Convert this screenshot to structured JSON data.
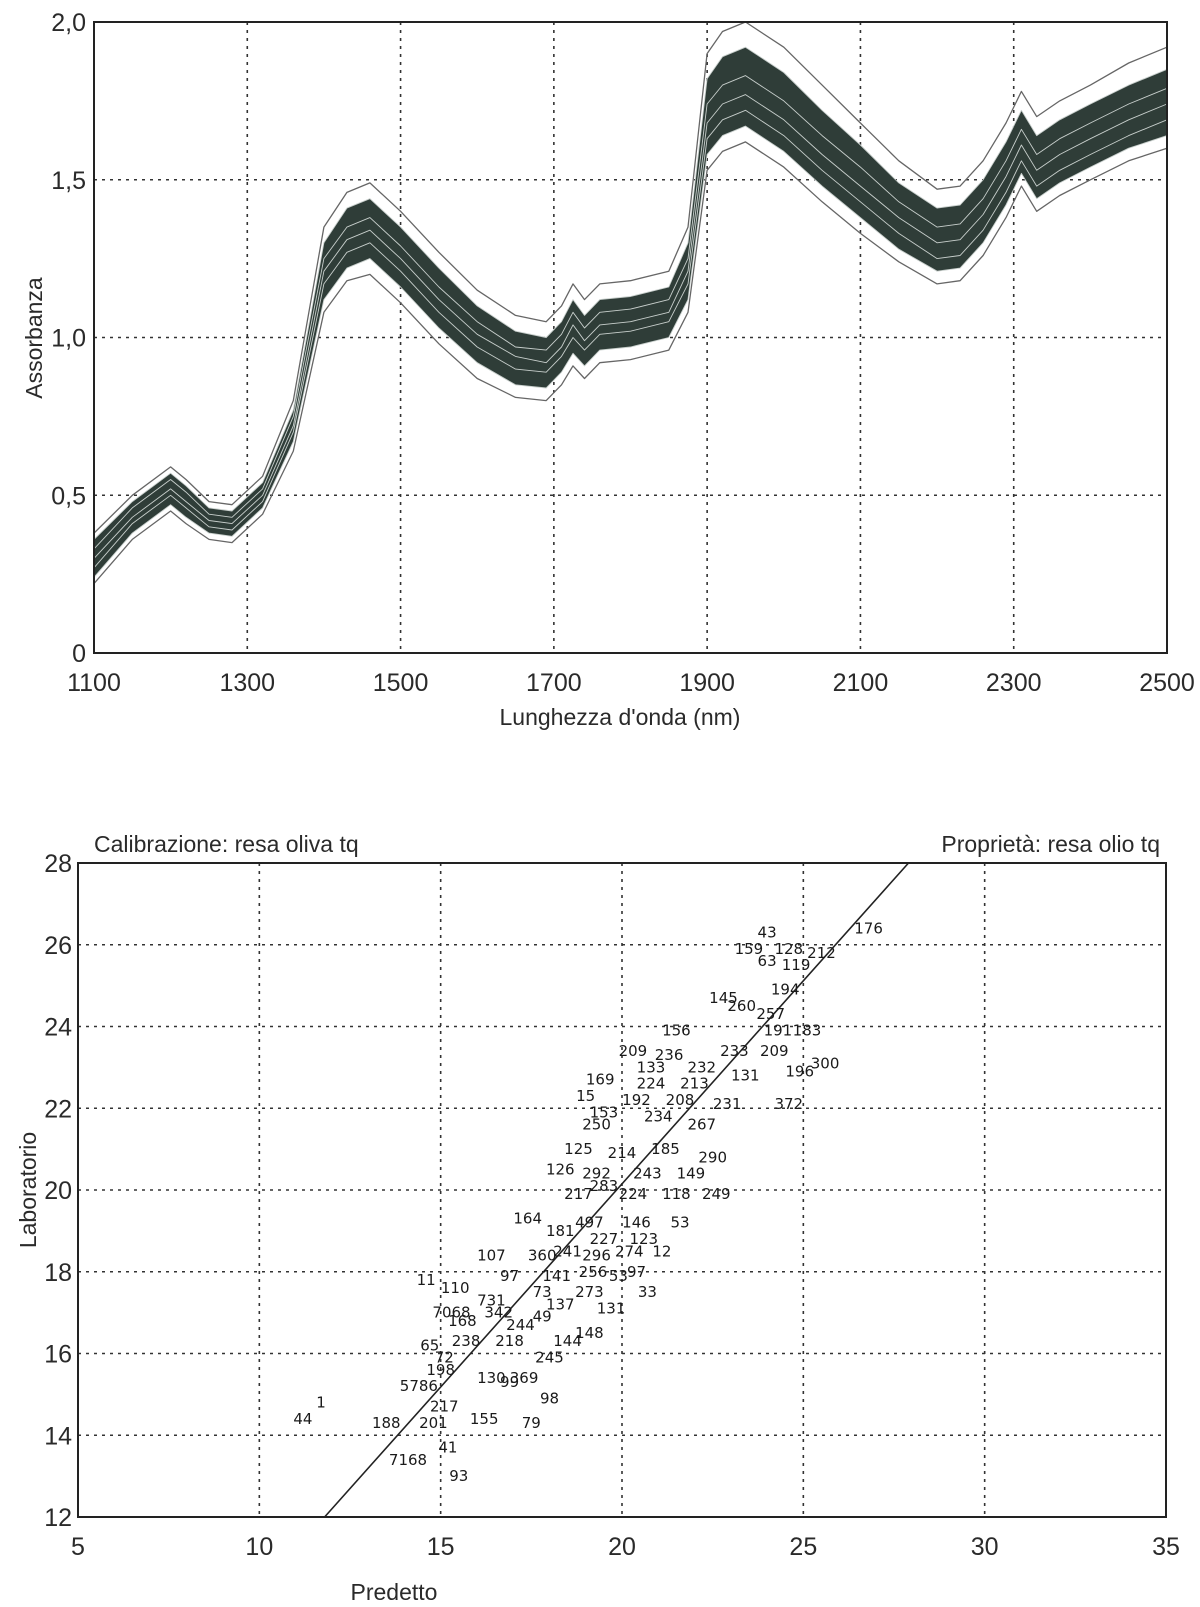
{
  "chart_data": [
    {
      "type": "line",
      "title": "",
      "xlabel": "Lunghezza d'onda (nm)",
      "ylabel": "Assorbanza",
      "xlim": [
        1100,
        2500
      ],
      "ylim": [
        0,
        2.0
      ],
      "x_ticks": [
        "1100",
        "1300",
        "1500",
        "1700",
        "1900",
        "2100",
        "2300",
        "2500"
      ],
      "y_ticks": [
        "0",
        "0,5",
        "1,0",
        "1,5",
        "2,0"
      ],
      "grid": true,
      "band_color": "#2f3d38",
      "x": [
        1100,
        1150,
        1200,
        1220,
        1250,
        1280,
        1320,
        1360,
        1400,
        1430,
        1460,
        1500,
        1550,
        1600,
        1650,
        1690,
        1710,
        1725,
        1740,
        1760,
        1800,
        1850,
        1875,
        1900,
        1920,
        1950,
        2000,
        2050,
        2100,
        2150,
        2200,
        2230,
        2260,
        2290,
        2310,
        2330,
        2360,
        2400,
        2450,
        2500
      ],
      "series": [
        {
          "values": [
            0.38,
            0.5,
            0.59,
            0.55,
            0.48,
            0.47,
            0.56,
            0.8,
            1.35,
            1.46,
            1.49,
            1.4,
            1.27,
            1.15,
            1.07,
            1.05,
            1.1,
            1.17,
            1.12,
            1.17,
            1.18,
            1.21,
            1.35,
            1.9,
            1.97,
            2.0,
            1.92,
            1.8,
            1.68,
            1.56,
            1.47,
            1.48,
            1.56,
            1.68,
            1.78,
            1.7,
            1.75,
            1.8,
            1.87,
            1.92
          ]
        },
        {
          "values": [
            0.36,
            0.48,
            0.57,
            0.53,
            0.46,
            0.45,
            0.54,
            0.77,
            1.3,
            1.41,
            1.44,
            1.35,
            1.22,
            1.1,
            1.02,
            1.0,
            1.05,
            1.12,
            1.07,
            1.12,
            1.13,
            1.16,
            1.3,
            1.82,
            1.89,
            1.92,
            1.84,
            1.72,
            1.61,
            1.49,
            1.41,
            1.42,
            1.5,
            1.62,
            1.72,
            1.64,
            1.69,
            1.74,
            1.8,
            1.85
          ]
        },
        {
          "values": [
            0.33,
            0.46,
            0.55,
            0.51,
            0.44,
            0.43,
            0.52,
            0.75,
            1.25,
            1.35,
            1.38,
            1.29,
            1.16,
            1.05,
            0.97,
            0.96,
            1.01,
            1.08,
            1.03,
            1.08,
            1.09,
            1.12,
            1.25,
            1.74,
            1.8,
            1.83,
            1.75,
            1.64,
            1.54,
            1.43,
            1.35,
            1.36,
            1.44,
            1.56,
            1.66,
            1.58,
            1.63,
            1.68,
            1.74,
            1.79
          ]
        },
        {
          "values": [
            0.3,
            0.43,
            0.52,
            0.48,
            0.42,
            0.41,
            0.5,
            0.72,
            1.21,
            1.31,
            1.34,
            1.25,
            1.12,
            1.01,
            0.94,
            0.92,
            0.97,
            1.04,
            0.99,
            1.04,
            1.05,
            1.08,
            1.21,
            1.68,
            1.74,
            1.77,
            1.69,
            1.58,
            1.48,
            1.38,
            1.3,
            1.31,
            1.39,
            1.51,
            1.61,
            1.53,
            1.58,
            1.63,
            1.69,
            1.74
          ]
        },
        {
          "values": [
            0.27,
            0.41,
            0.5,
            0.46,
            0.4,
            0.39,
            0.48,
            0.7,
            1.17,
            1.27,
            1.3,
            1.21,
            1.08,
            0.97,
            0.9,
            0.89,
            0.94,
            1.0,
            0.96,
            1.01,
            1.02,
            1.05,
            1.17,
            1.63,
            1.69,
            1.72,
            1.64,
            1.53,
            1.43,
            1.33,
            1.25,
            1.26,
            1.34,
            1.46,
            1.56,
            1.48,
            1.53,
            1.58,
            1.64,
            1.69
          ]
        },
        {
          "values": [
            0.24,
            0.38,
            0.47,
            0.43,
            0.38,
            0.37,
            0.46,
            0.67,
            1.12,
            1.22,
            1.25,
            1.16,
            1.03,
            0.92,
            0.85,
            0.84,
            0.89,
            0.95,
            0.91,
            0.96,
            0.97,
            1.0,
            1.12,
            1.58,
            1.64,
            1.67,
            1.59,
            1.48,
            1.38,
            1.28,
            1.21,
            1.22,
            1.3,
            1.42,
            1.52,
            1.44,
            1.49,
            1.54,
            1.6,
            1.64
          ]
        },
        {
          "values": [
            0.22,
            0.36,
            0.45,
            0.41,
            0.36,
            0.35,
            0.44,
            0.64,
            1.08,
            1.18,
            1.2,
            1.11,
            0.98,
            0.87,
            0.81,
            0.8,
            0.85,
            0.91,
            0.87,
            0.92,
            0.93,
            0.96,
            1.08,
            1.53,
            1.59,
            1.62,
            1.54,
            1.43,
            1.33,
            1.24,
            1.17,
            1.18,
            1.26,
            1.38,
            1.48,
            1.4,
            1.45,
            1.5,
            1.56,
            1.6
          ]
        }
      ]
    },
    {
      "type": "scatter",
      "title_left": "Calibrazione: resa oliva tq",
      "title_right": "Proprietà: resa olio tq",
      "xlabel": "Predetto",
      "ylabel": "Laboratorio",
      "xlim": [
        5,
        35
      ],
      "ylim": [
        12,
        28
      ],
      "x_ticks": [
        "5",
        "10",
        "15",
        "20",
        "25",
        "30",
        "35"
      ],
      "y_ticks": [
        "12",
        "14",
        "16",
        "18",
        "20",
        "22",
        "24",
        "26",
        "28"
      ],
      "grid": true,
      "fit_line": [
        [
          11.8,
          12
        ],
        [
          27.9,
          28
        ]
      ],
      "points": [
        {
          "x": 26.8,
          "y": 26.4,
          "label": "176"
        },
        {
          "x": 24.0,
          "y": 26.3,
          "label": "43"
        },
        {
          "x": 23.5,
          "y": 25.9,
          "label": "159"
        },
        {
          "x": 24.6,
          "y": 25.9,
          "label": "128"
        },
        {
          "x": 24.0,
          "y": 25.6,
          "label": "63"
        },
        {
          "x": 24.8,
          "y": 25.5,
          "label": "119"
        },
        {
          "x": 25.5,
          "y": 25.8,
          "label": "212"
        },
        {
          "x": 24.5,
          "y": 24.9,
          "label": "194"
        },
        {
          "x": 22.8,
          "y": 24.7,
          "label": "145"
        },
        {
          "x": 23.3,
          "y": 24.5,
          "label": "260"
        },
        {
          "x": 24.1,
          "y": 24.3,
          "label": "257"
        },
        {
          "x": 21.5,
          "y": 23.9,
          "label": "156"
        },
        {
          "x": 24.3,
          "y": 23.9,
          "label": "191"
        },
        {
          "x": 25.1,
          "y": 23.9,
          "label": "183"
        },
        {
          "x": 20.3,
          "y": 23.4,
          "label": "209"
        },
        {
          "x": 21.3,
          "y": 23.3,
          "label": "236"
        },
        {
          "x": 23.1,
          "y": 23.4,
          "label": "233"
        },
        {
          "x": 24.2,
          "y": 23.4,
          "label": "209"
        },
        {
          "x": 20.8,
          "y": 23.0,
          "label": "133"
        },
        {
          "x": 22.2,
          "y": 23.0,
          "label": "232"
        },
        {
          "x": 24.9,
          "y": 22.9,
          "label": "196"
        },
        {
          "x": 25.6,
          "y": 23.1,
          "label": "300"
        },
        {
          "x": 19.4,
          "y": 22.7,
          "label": "169"
        },
        {
          "x": 20.8,
          "y": 22.6,
          "label": "224"
        },
        {
          "x": 22.0,
          "y": 22.6,
          "label": "213"
        },
        {
          "x": 23.4,
          "y": 22.8,
          "label": "131"
        },
        {
          "x": 19.0,
          "y": 22.3,
          "label": "15"
        },
        {
          "x": 20.4,
          "y": 22.2,
          "label": "192"
        },
        {
          "x": 21.6,
          "y": 22.2,
          "label": "208"
        },
        {
          "x": 22.9,
          "y": 22.1,
          "label": "231"
        },
        {
          "x": 24.6,
          "y": 22.1,
          "label": "372"
        },
        {
          "x": 19.5,
          "y": 21.9,
          "label": "153"
        },
        {
          "x": 21.0,
          "y": 21.8,
          "label": "234"
        },
        {
          "x": 19.3,
          "y": 21.6,
          "label": "250"
        },
        {
          "x": 22.2,
          "y": 21.6,
          "label": "267"
        },
        {
          "x": 18.8,
          "y": 21.0,
          "label": "125"
        },
        {
          "x": 20.0,
          "y": 20.9,
          "label": "214"
        },
        {
          "x": 21.2,
          "y": 21.0,
          "label": "185"
        },
        {
          "x": 22.5,
          "y": 20.8,
          "label": "290"
        },
        {
          "x": 18.3,
          "y": 20.5,
          "label": "126"
        },
        {
          "x": 19.3,
          "y": 20.4,
          "label": "292"
        },
        {
          "x": 20.7,
          "y": 20.4,
          "label": "243"
        },
        {
          "x": 21.9,
          "y": 20.4,
          "label": "149"
        },
        {
          "x": 19.5,
          "y": 20.1,
          "label": "283"
        },
        {
          "x": 18.8,
          "y": 19.9,
          "label": "217"
        },
        {
          "x": 20.3,
          "y": 19.9,
          "label": "224"
        },
        {
          "x": 21.5,
          "y": 19.9,
          "label": "118"
        },
        {
          "x": 22.6,
          "y": 19.9,
          "label": "249"
        },
        {
          "x": 17.4,
          "y": 19.3,
          "label": "164"
        },
        {
          "x": 19.1,
          "y": 19.2,
          "label": "497"
        },
        {
          "x": 20.4,
          "y": 19.2,
          "label": "146"
        },
        {
          "x": 21.6,
          "y": 19.2,
          "label": "53"
        },
        {
          "x": 18.3,
          "y": 19.0,
          "label": "181"
        },
        {
          "x": 19.5,
          "y": 18.8,
          "label": "227"
        },
        {
          "x": 20.6,
          "y": 18.8,
          "label": "123"
        },
        {
          "x": 18.5,
          "y": 18.5,
          "label": "241"
        },
        {
          "x": 20.2,
          "y": 18.5,
          "label": "274"
        },
        {
          "x": 21.1,
          "y": 18.5,
          "label": "12"
        },
        {
          "x": 16.4,
          "y": 18.4,
          "label": "107"
        },
        {
          "x": 17.8,
          "y": 18.4,
          "label": "360"
        },
        {
          "x": 19.3,
          "y": 18.4,
          "label": "296"
        },
        {
          "x": 19.2,
          "y": 18.0,
          "label": "256"
        },
        {
          "x": 20.4,
          "y": 18.0,
          "label": "97"
        },
        {
          "x": 16.9,
          "y": 17.9,
          "label": "97"
        },
        {
          "x": 18.2,
          "y": 17.9,
          "label": "141"
        },
        {
          "x": 19.9,
          "y": 17.9,
          "label": "53"
        },
        {
          "x": 14.6,
          "y": 17.8,
          "label": "11"
        },
        {
          "x": 15.4,
          "y": 17.6,
          "label": "110"
        },
        {
          "x": 17.8,
          "y": 17.5,
          "label": "73"
        },
        {
          "x": 19.1,
          "y": 17.5,
          "label": "273"
        },
        {
          "x": 20.7,
          "y": 17.5,
          "label": "33"
        },
        {
          "x": 16.4,
          "y": 17.3,
          "label": "731"
        },
        {
          "x": 18.3,
          "y": 17.2,
          "label": "137"
        },
        {
          "x": 19.7,
          "y": 17.1,
          "label": "131"
        },
        {
          "x": 15.3,
          "y": 17.0,
          "label": "7068"
        },
        {
          "x": 16.6,
          "y": 17.0,
          "label": "342"
        },
        {
          "x": 17.8,
          "y": 16.9,
          "label": "49"
        },
        {
          "x": 15.6,
          "y": 16.8,
          "label": "168"
        },
        {
          "x": 17.2,
          "y": 16.7,
          "label": "244"
        },
        {
          "x": 19.1,
          "y": 16.5,
          "label": "148"
        },
        {
          "x": 14.7,
          "y": 16.2,
          "label": "65"
        },
        {
          "x": 15.7,
          "y": 16.3,
          "label": "238"
        },
        {
          "x": 16.9,
          "y": 16.3,
          "label": "218"
        },
        {
          "x": 18.5,
          "y": 16.3,
          "label": "144"
        },
        {
          "x": 15.1,
          "y": 15.9,
          "label": "72"
        },
        {
          "x": 18.0,
          "y": 15.9,
          "label": "245"
        },
        {
          "x": 15.0,
          "y": 15.6,
          "label": "198"
        },
        {
          "x": 16.4,
          "y": 15.4,
          "label": "130"
        },
        {
          "x": 17.3,
          "y": 15.4,
          "label": "369"
        },
        {
          "x": 14.4,
          "y": 15.2,
          "label": "5786"
        },
        {
          "x": 16.9,
          "y": 15.3,
          "label": "99"
        },
        {
          "x": 18.0,
          "y": 14.9,
          "label": "98"
        },
        {
          "x": 15.1,
          "y": 14.7,
          "label": "217"
        },
        {
          "x": 16.2,
          "y": 14.4,
          "label": "155"
        },
        {
          "x": 17.5,
          "y": 14.3,
          "label": "79"
        },
        {
          "x": 11.2,
          "y": 14.4,
          "label": "44"
        },
        {
          "x": 11.7,
          "y": 14.8,
          "label": "1"
        },
        {
          "x": 13.5,
          "y": 14.3,
          "label": "188"
        },
        {
          "x": 14.8,
          "y": 14.3,
          "label": "201"
        },
        {
          "x": 15.2,
          "y": 13.7,
          "label": "41"
        },
        {
          "x": 14.1,
          "y": 13.4,
          "label": "7168"
        },
        {
          "x": 15.5,
          "y": 13.0,
          "label": "93"
        }
      ]
    }
  ]
}
